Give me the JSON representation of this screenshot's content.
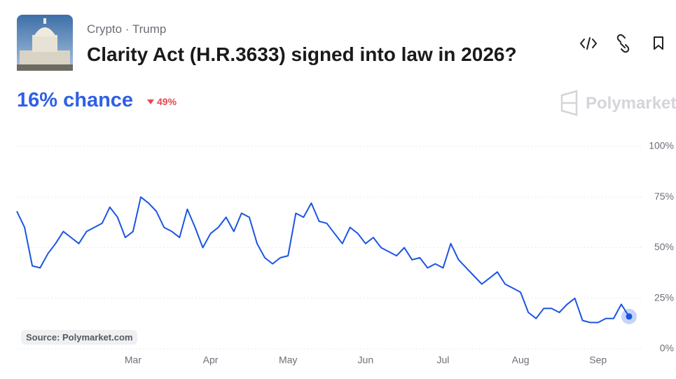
{
  "header": {
    "tags": [
      "Crypto",
      "Trump"
    ],
    "title": "Clarity Act (H.R.3633) signed into law in 2026?",
    "chance": "16% chance",
    "change": "49%",
    "brand": "Polymarket"
  },
  "source": "Source: Polymarket.com",
  "chart_data": {
    "type": "line",
    "categories": [
      null,
      null,
      null,
      null,
      null,
      null,
      null,
      null,
      null,
      null,
      null,
      null,
      null,
      null,
      null,
      "Mar",
      null,
      null,
      null,
      null,
      null,
      null,
      null,
      null,
      null,
      "Apr",
      null,
      null,
      null,
      null,
      null,
      null,
      null,
      null,
      null,
      "May",
      null,
      null,
      null,
      null,
      null,
      null,
      null,
      null,
      null,
      "Jun",
      null,
      null,
      null,
      null,
      null,
      null,
      null,
      null,
      null,
      "Jul",
      null,
      null,
      null,
      null,
      null,
      null,
      null,
      null,
      null,
      "Aug",
      null,
      null,
      null,
      null,
      null,
      null,
      null,
      null,
      null,
      "Sep",
      null,
      null,
      null,
      null
    ],
    "values": [
      68,
      60,
      41,
      40,
      47,
      52,
      58,
      55,
      52,
      58,
      60,
      62,
      70,
      65,
      55,
      58,
      75,
      72,
      68,
      60,
      58,
      55,
      69,
      60,
      50,
      57,
      60,
      65,
      58,
      67,
      65,
      52,
      45,
      42,
      45,
      46,
      67,
      65,
      72,
      63,
      62,
      57,
      52,
      60,
      57,
      52,
      55,
      50,
      48,
      46,
      50,
      44,
      45,
      40,
      42,
      40,
      52,
      44,
      40,
      36,
      32,
      35,
      38,
      32,
      30,
      28,
      18,
      15,
      20,
      20,
      18,
      22,
      25,
      14,
      13,
      13,
      15,
      15,
      22,
      16
    ],
    "color": "#1b55e2",
    "ylim": [
      0,
      100
    ],
    "yticks": [
      {
        "value": 0,
        "label": "0%"
      },
      {
        "value": 25,
        "label": "25%"
      },
      {
        "value": 50,
        "label": "50%"
      },
      {
        "value": 75,
        "label": "75%"
      },
      {
        "value": 100,
        "label": "100%"
      }
    ],
    "grid": true
  }
}
